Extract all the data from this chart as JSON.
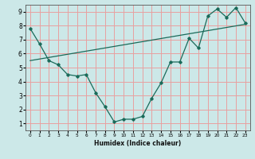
{
  "xlabel": "Humidex (Indice chaleur)",
  "ylabel": "",
  "bg_color": "#cce8e8",
  "grid_color": "#e8a0a0",
  "line_color": "#1a6b5a",
  "xlim": [
    -0.5,
    23.5
  ],
  "ylim": [
    0.5,
    9.5
  ],
  "xticks": [
    0,
    1,
    2,
    3,
    4,
    5,
    6,
    7,
    8,
    9,
    10,
    11,
    12,
    13,
    14,
    15,
    16,
    17,
    18,
    19,
    20,
    21,
    22,
    23
  ],
  "yticks": [
    1,
    2,
    3,
    4,
    5,
    6,
    7,
    8,
    9
  ],
  "curve1_x": [
    0,
    1,
    2,
    3,
    4,
    5,
    6,
    7,
    8,
    9,
    10,
    11,
    12,
    13,
    14,
    15,
    16,
    17,
    18,
    19,
    20,
    21,
    22,
    23
  ],
  "curve1_y": [
    7.8,
    6.7,
    5.5,
    5.2,
    4.5,
    4.4,
    4.5,
    3.2,
    2.2,
    1.1,
    1.3,
    1.3,
    1.5,
    2.8,
    3.9,
    5.4,
    5.4,
    7.1,
    6.4,
    8.7,
    9.2,
    8.6,
    9.3,
    8.2
  ],
  "curve2_x": [
    0,
    23
  ],
  "curve2_y": [
    5.5,
    8.1
  ]
}
